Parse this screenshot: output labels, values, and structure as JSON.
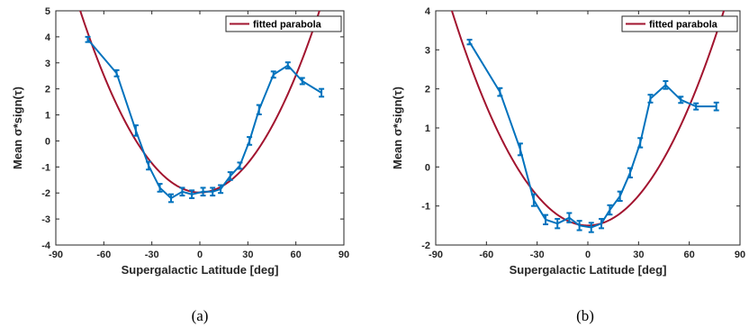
{
  "chart_data": [
    {
      "type": "line",
      "caption": "(a)",
      "xlabel": "Supergalactic Latitude  [deg]",
      "ylabel": "Mean σ*sign(τ)",
      "xlim": [
        -90,
        90
      ],
      "ylim": [
        -4,
        5
      ],
      "xticks": [
        -90,
        -60,
        -30,
        0,
        30,
        60,
        90
      ],
      "yticks": [
        -4,
        -3,
        -2,
        -1,
        0,
        1,
        2,
        3,
        4,
        5
      ],
      "grid": false,
      "legend": "top-right",
      "series": [
        {
          "name": "",
          "color": "#0072BD",
          "x": [
            -70,
            -52,
            -40,
            -32,
            -25,
            -18,
            -11,
            -5,
            2,
            8,
            13,
            19,
            25,
            31,
            37,
            46,
            55,
            64,
            76
          ],
          "y": [
            3.9,
            2.6,
            0.4,
            -0.95,
            -1.8,
            -2.2,
            -1.95,
            -2.05,
            -1.95,
            -1.95,
            -1.85,
            -1.35,
            -0.95,
            0.0,
            1.2,
            2.55,
            2.9,
            2.3,
            1.85
          ],
          "err": [
            0.1,
            0.12,
            0.2,
            0.15,
            0.15,
            0.15,
            0.15,
            0.15,
            0.15,
            0.15,
            0.15,
            0.15,
            0.12,
            0.15,
            0.18,
            0.12,
            0.12,
            0.12,
            0.15
          ]
        },
        {
          "name": "fitted parabola",
          "color": "#A2142F",
          "fit": {
            "a": 0.00125,
            "b": 0.0,
            "c": -1.98
          }
        }
      ]
    },
    {
      "type": "line",
      "caption": "(b)",
      "xlabel": "Supergalactic Latitude  [deg]",
      "ylabel": "Mean σ*sign(τ)",
      "xlim": [
        -90,
        90
      ],
      "ylim": [
        -2,
        4
      ],
      "xticks": [
        -90,
        -60,
        -30,
        0,
        30,
        60,
        90
      ],
      "yticks": [
        -2,
        -1,
        0,
        1,
        2,
        3,
        4
      ],
      "grid": false,
      "legend": "top-right",
      "series": [
        {
          "name": "",
          "color": "#0072BD",
          "x": [
            -70,
            -52,
            -40,
            -32,
            -25,
            -18,
            -11,
            -5,
            2,
            8,
            13,
            19,
            25,
            31,
            37,
            46,
            55,
            64,
            76
          ],
          "y": [
            3.2,
            1.92,
            0.45,
            -0.85,
            -1.35,
            -1.45,
            -1.3,
            -1.5,
            -1.55,
            -1.45,
            -1.1,
            -0.75,
            -0.15,
            0.62,
            1.75,
            2.1,
            1.72,
            1.55,
            1.55
          ],
          "err": [
            0.06,
            0.1,
            0.15,
            0.15,
            0.12,
            0.12,
            0.12,
            0.12,
            0.12,
            0.12,
            0.12,
            0.12,
            0.12,
            0.12,
            0.1,
            0.1,
            0.08,
            0.08,
            0.1
          ]
        },
        {
          "name": "fitted parabola",
          "color": "#A2142F",
          "fit": {
            "a": 0.00085,
            "b": 0.0,
            "c": -1.5
          }
        }
      ]
    }
  ]
}
